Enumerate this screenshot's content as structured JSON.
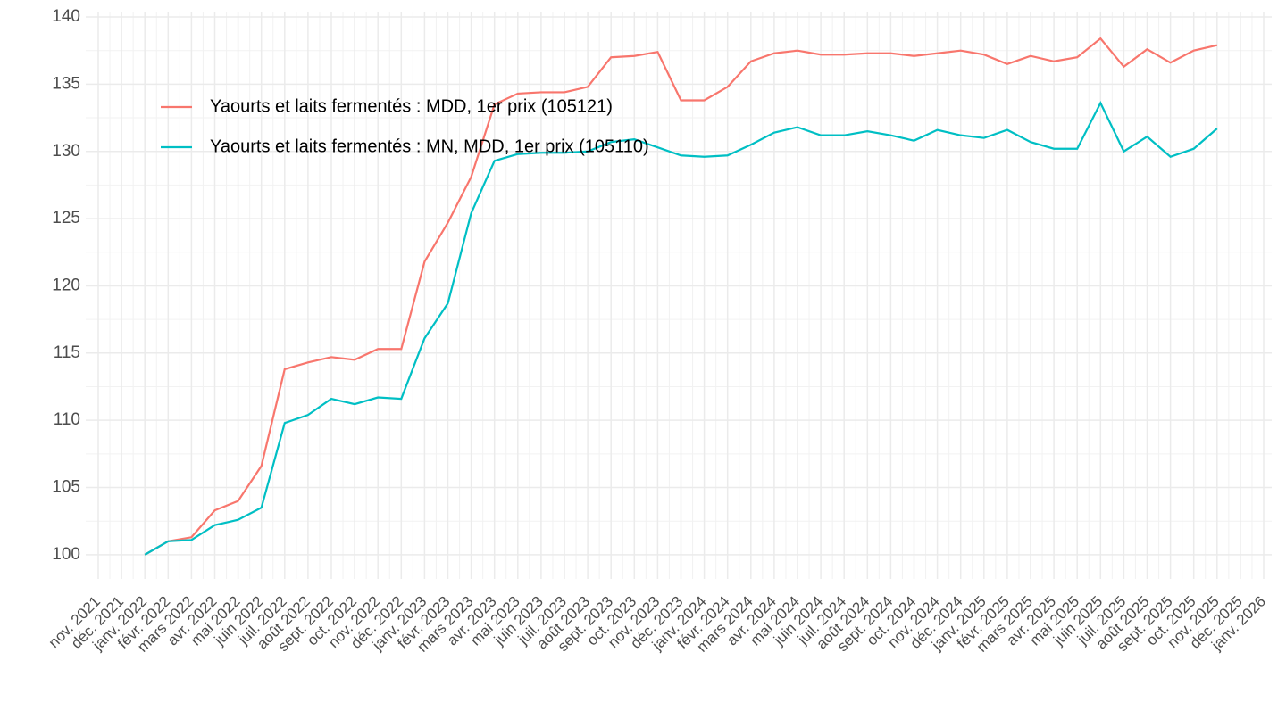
{
  "chart_data": {
    "type": "line",
    "categories": [
      "nov. 2021",
      "déc. 2021",
      "janv. 2022",
      "févr. 2022",
      "mars 2022",
      "avr. 2022",
      "mai 2022",
      "juin 2022",
      "juil. 2022",
      "août 2022",
      "sept. 2022",
      "oct. 2022",
      "nov. 2022",
      "déc. 2022",
      "janv. 2023",
      "févr. 2023",
      "mars 2023",
      "avr. 2023",
      "mai 2023",
      "juin 2023",
      "juil. 2023",
      "août 2023",
      "sept. 2023",
      "oct. 2023",
      "nov. 2023",
      "déc. 2023",
      "janv. 2024",
      "févr. 2024",
      "mars 2024",
      "avr. 2024",
      "mai 2024",
      "juin 2024",
      "juil. 2024",
      "août 2024",
      "sept. 2024",
      "oct. 2024",
      "nov. 2024",
      "déc. 2024",
      "janv. 2025",
      "févr. 2025",
      "mars 2025",
      "avr. 2025",
      "mai 2025",
      "juin 2025",
      "juil. 2025",
      "août 2025",
      "sept. 2025",
      "oct. 2025",
      "nov. 2025",
      "déc. 2025",
      "janv. 2026"
    ],
    "series": [
      {
        "name": "Yaourts et laits fermentés : MDD, 1er prix (105121)",
        "color": "#f8766d",
        "values": [
          null,
          null,
          100,
          101.0,
          101.3,
          103.3,
          104.0,
          106.6,
          113.8,
          114.3,
          114.7,
          114.5,
          115.3,
          115.3,
          121.8,
          124.7,
          128.1,
          133.5,
          134.3,
          134.4,
          134.4,
          134.8,
          137.0,
          137.1,
          137.4,
          133.8,
          133.8,
          134.8,
          136.7,
          137.3,
          137.5,
          137.2,
          137.2,
          137.3,
          137.3,
          137.1,
          137.3,
          137.5,
          137.2,
          136.5,
          137.1,
          136.7,
          137.0,
          138.4,
          136.3,
          137.6,
          136.6,
          137.5,
          137.9,
          null,
          null
        ]
      },
      {
        "name": "Yaourts et laits fermentés : MN, MDD, 1er prix (105110)",
        "color": "#00bfc4",
        "values": [
          null,
          null,
          100,
          101.0,
          101.1,
          102.2,
          102.6,
          103.5,
          109.8,
          110.4,
          111.6,
          111.2,
          111.7,
          111.6,
          116.1,
          118.7,
          125.4,
          129.3,
          129.8,
          129.9,
          129.9,
          130.0,
          130.7,
          130.9,
          130.3,
          129.7,
          129.6,
          129.7,
          130.5,
          131.4,
          131.8,
          131.2,
          131.2,
          131.5,
          131.2,
          130.8,
          131.6,
          131.2,
          131.0,
          131.6,
          130.7,
          130.2,
          130.2,
          133.6,
          130.0,
          131.1,
          129.6,
          130.2,
          131.7,
          null,
          null
        ]
      }
    ],
    "ylim": [
      98.2,
      140.4
    ],
    "yticks": [
      100,
      105,
      110,
      115,
      120,
      125,
      130,
      135,
      140
    ],
    "grid": true
  }
}
